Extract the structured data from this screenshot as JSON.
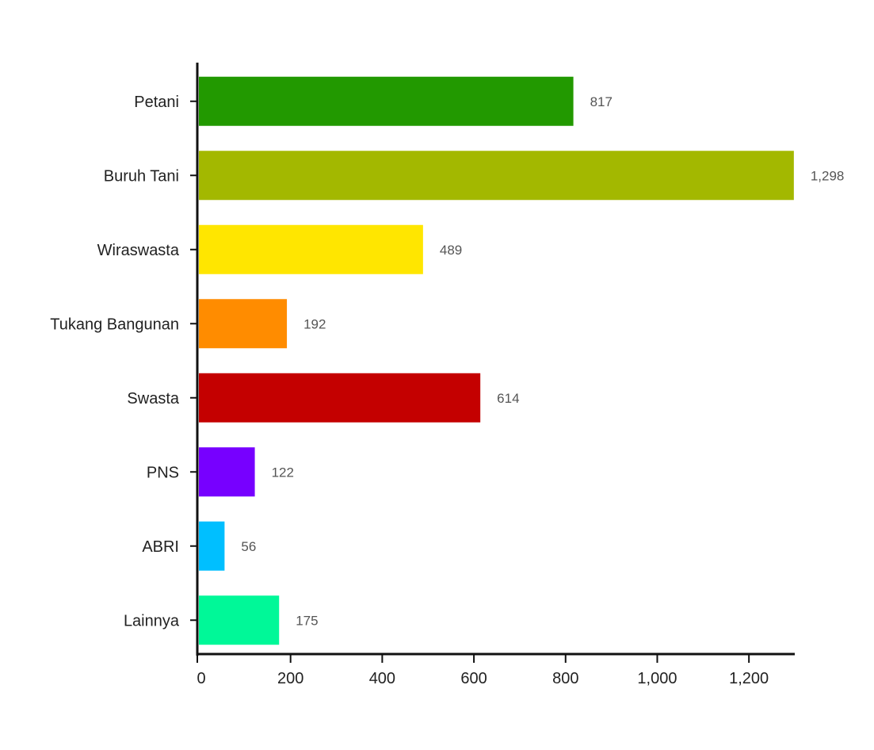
{
  "chart_data": {
    "type": "bar",
    "orientation": "horizontal",
    "categories": [
      "Petani",
      "Buruh Tani",
      "Wiraswasta",
      "Tukang Bangunan",
      "Swasta",
      "PNS",
      "ABRI",
      "Lainnya"
    ],
    "values": [
      817,
      1298,
      489,
      192,
      614,
      122,
      56,
      175
    ],
    "value_labels": [
      "817",
      "1,298",
      "489",
      "192",
      "614",
      "122",
      "56",
      "175"
    ],
    "colors": [
      "#229900",
      "#a3b800",
      "#ffe600",
      "#ff8c00",
      "#c40000",
      "#7700ff",
      "#00bfff",
      "#00f898"
    ],
    "xlim": [
      0,
      1300
    ],
    "x_ticks": [
      0,
      200,
      400,
      600,
      800,
      1000,
      1200
    ],
    "x_tick_labels": [
      "0",
      "200",
      "400",
      "600",
      "800",
      "1,000",
      "1,200"
    ],
    "grid": false,
    "legend": "none"
  }
}
